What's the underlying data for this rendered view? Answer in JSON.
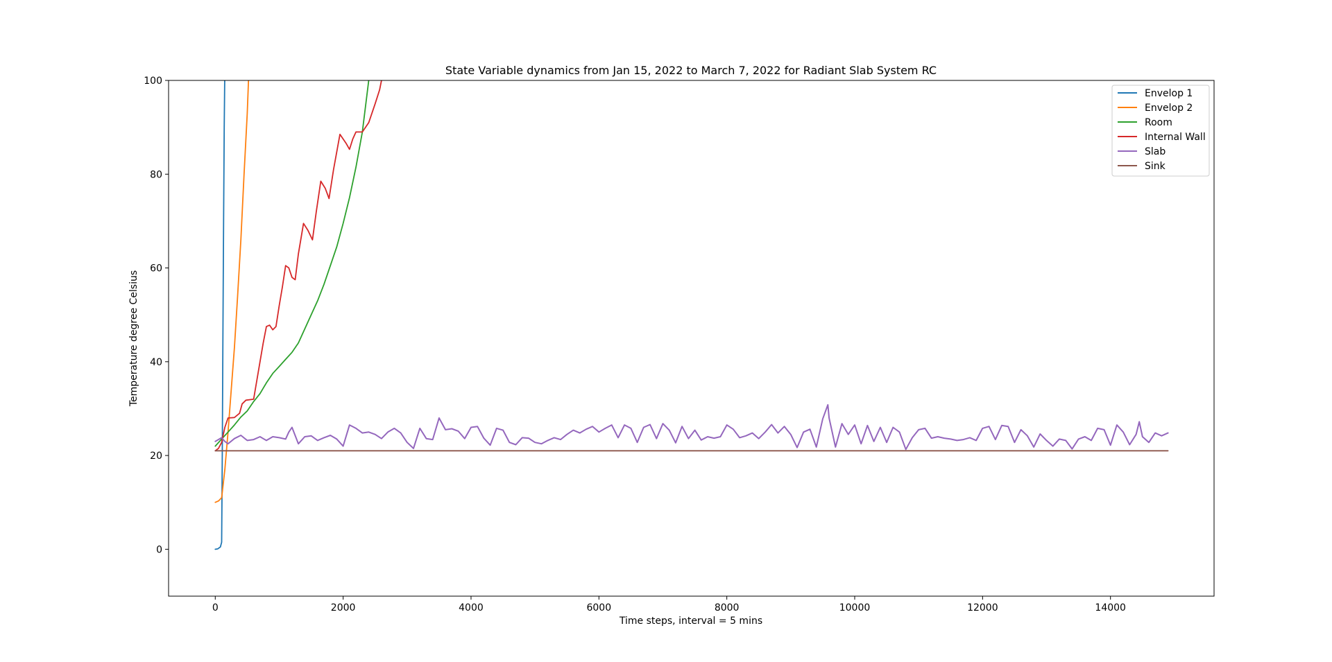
{
  "chart_data": {
    "type": "line",
    "title": "State Variable dynamics from Jan 15, 2022 to March 7, 2022 for Radiant Slab System RC",
    "xlabel": "Time steps, interval = 5 mins",
    "ylabel": "Temperature degree Celsius",
    "xlim": [
      -730,
      15620
    ],
    "ylim": [
      -10,
      100
    ],
    "xticks": [
      0,
      2000,
      4000,
      6000,
      8000,
      10000,
      12000,
      14000
    ],
    "yticks": [
      0,
      20,
      40,
      60,
      80,
      100
    ],
    "grid": false,
    "legend_position": "top-right",
    "series": [
      {
        "name": "Envelop 1",
        "color": "#1f77b4",
        "points": [
          [
            0,
            0
          ],
          [
            40,
            0.1
          ],
          [
            80,
            0.5
          ],
          [
            100,
            1.5
          ],
          [
            110,
            20
          ],
          [
            120,
            45
          ],
          [
            130,
            70
          ],
          [
            140,
            90
          ],
          [
            148,
            100
          ]
        ]
      },
      {
        "name": "Envelop 2",
        "color": "#ff7f0e",
        "points": [
          [
            0,
            10
          ],
          [
            50,
            10.3
          ],
          [
            100,
            11
          ],
          [
            150,
            17
          ],
          [
            200,
            25
          ],
          [
            250,
            34
          ],
          [
            300,
            43
          ],
          [
            350,
            54
          ],
          [
            400,
            66
          ],
          [
            450,
            80
          ],
          [
            500,
            93
          ],
          [
            520,
            100
          ]
        ]
      },
      {
        "name": "Room",
        "color": "#2ca02c",
        "points": [
          [
            0,
            22
          ],
          [
            100,
            23.5
          ],
          [
            200,
            25
          ],
          [
            300,
            26.5
          ],
          [
            400,
            28.2
          ],
          [
            500,
            29.5
          ],
          [
            600,
            31.5
          ],
          [
            700,
            33.2
          ],
          [
            800,
            35.5
          ],
          [
            900,
            37.5
          ],
          [
            1000,
            39
          ],
          [
            1100,
            40.5
          ],
          [
            1200,
            42
          ],
          [
            1300,
            44
          ],
          [
            1400,
            47
          ],
          [
            1500,
            50
          ],
          [
            1600,
            53
          ],
          [
            1700,
            56.5
          ],
          [
            1800,
            60.5
          ],
          [
            1900,
            64.5
          ],
          [
            2000,
            69.5
          ],
          [
            2100,
            75
          ],
          [
            2200,
            81.5
          ],
          [
            2300,
            89
          ],
          [
            2400,
            100
          ]
        ]
      },
      {
        "name": "Internal Wall",
        "color": "#d62728",
        "points": [
          [
            0,
            21
          ],
          [
            50,
            21.5
          ],
          [
            100,
            22.8
          ],
          [
            150,
            26
          ],
          [
            200,
            28
          ],
          [
            300,
            28.1
          ],
          [
            380,
            29
          ],
          [
            420,
            31
          ],
          [
            480,
            31.8
          ],
          [
            600,
            32
          ],
          [
            650,
            36
          ],
          [
            700,
            40
          ],
          [
            750,
            44
          ],
          [
            800,
            47.5
          ],
          [
            850,
            47.8
          ],
          [
            900,
            46.8
          ],
          [
            950,
            47.5
          ],
          [
            1000,
            52
          ],
          [
            1050,
            56
          ],
          [
            1100,
            60.5
          ],
          [
            1150,
            60
          ],
          [
            1200,
            58
          ],
          [
            1250,
            57.5
          ],
          [
            1300,
            63
          ],
          [
            1380,
            69.5
          ],
          [
            1450,
            68
          ],
          [
            1520,
            66
          ],
          [
            1580,
            72
          ],
          [
            1650,
            78.5
          ],
          [
            1720,
            77
          ],
          [
            1780,
            74.8
          ],
          [
            1850,
            81
          ],
          [
            1950,
            88.5
          ],
          [
            2050,
            86.5
          ],
          [
            2100,
            85.3
          ],
          [
            2150,
            87.5
          ],
          [
            2200,
            89
          ],
          [
            2300,
            89
          ],
          [
            2400,
            91
          ],
          [
            2500,
            95
          ],
          [
            2570,
            98
          ],
          [
            2600,
            100
          ]
        ]
      },
      {
        "name": "Slab",
        "color": "#9467bd",
        "points": [
          [
            0,
            23
          ],
          [
            100,
            23.8
          ],
          [
            150,
            23
          ],
          [
            200,
            22.5
          ],
          [
            300,
            23.6
          ],
          [
            400,
            24.3
          ],
          [
            500,
            23.2
          ],
          [
            600,
            23.4
          ],
          [
            700,
            24
          ],
          [
            800,
            23.2
          ],
          [
            900,
            24
          ],
          [
            1000,
            23.8
          ],
          [
            1100,
            23.5
          ],
          [
            1150,
            25
          ],
          [
            1200,
            26
          ],
          [
            1300,
            22.5
          ],
          [
            1400,
            24
          ],
          [
            1500,
            24.2
          ],
          [
            1600,
            23.2
          ],
          [
            1700,
            23.8
          ],
          [
            1800,
            24.3
          ],
          [
            1900,
            23.5
          ],
          [
            2000,
            22
          ],
          [
            2100,
            26.5
          ],
          [
            2200,
            25.8
          ],
          [
            2300,
            24.8
          ],
          [
            2400,
            25
          ],
          [
            2500,
            24.5
          ],
          [
            2600,
            23.6
          ],
          [
            2700,
            25
          ],
          [
            2800,
            25.8
          ],
          [
            2900,
            24.8
          ],
          [
            3000,
            22.8
          ],
          [
            3100,
            21.5
          ],
          [
            3200,
            25.8
          ],
          [
            3300,
            23.6
          ],
          [
            3400,
            23.4
          ],
          [
            3500,
            28
          ],
          [
            3600,
            25.5
          ],
          [
            3700,
            25.7
          ],
          [
            3800,
            25.2
          ],
          [
            3900,
            23.6
          ],
          [
            4000,
            26
          ],
          [
            4100,
            26.2
          ],
          [
            4200,
            23.7
          ],
          [
            4300,
            22.2
          ],
          [
            4400,
            25.8
          ],
          [
            4500,
            25.4
          ],
          [
            4600,
            22.8
          ],
          [
            4700,
            22.3
          ],
          [
            4800,
            23.8
          ],
          [
            4900,
            23.7
          ],
          [
            5000,
            22.8
          ],
          [
            5100,
            22.5
          ],
          [
            5200,
            23.2
          ],
          [
            5300,
            23.8
          ],
          [
            5400,
            23.4
          ],
          [
            5500,
            24.5
          ],
          [
            5600,
            25.4
          ],
          [
            5700,
            24.8
          ],
          [
            5800,
            25.6
          ],
          [
            5900,
            26.2
          ],
          [
            6000,
            25
          ],
          [
            6100,
            25.8
          ],
          [
            6200,
            26.5
          ],
          [
            6300,
            23.8
          ],
          [
            6400,
            26.5
          ],
          [
            6500,
            25.8
          ],
          [
            6600,
            22.8
          ],
          [
            6700,
            26
          ],
          [
            6800,
            26.6
          ],
          [
            6900,
            23.6
          ],
          [
            7000,
            26.8
          ],
          [
            7100,
            25.4
          ],
          [
            7200,
            22.7
          ],
          [
            7300,
            26.2
          ],
          [
            7400,
            23.6
          ],
          [
            7500,
            25.4
          ],
          [
            7600,
            23.3
          ],
          [
            7700,
            24
          ],
          [
            7800,
            23.7
          ],
          [
            7900,
            24
          ],
          [
            8000,
            26.5
          ],
          [
            8100,
            25.6
          ],
          [
            8200,
            23.8
          ],
          [
            8300,
            24.2
          ],
          [
            8400,
            24.8
          ],
          [
            8500,
            23.6
          ],
          [
            8600,
            25
          ],
          [
            8700,
            26.6
          ],
          [
            8800,
            24.8
          ],
          [
            8900,
            26.2
          ],
          [
            9000,
            24.5
          ],
          [
            9100,
            21.7
          ],
          [
            9200,
            25
          ],
          [
            9300,
            25.6
          ],
          [
            9400,
            21.8
          ],
          [
            9500,
            27.8
          ],
          [
            9580,
            30.8
          ],
          [
            9600,
            28
          ],
          [
            9700,
            21.8
          ],
          [
            9800,
            26.8
          ],
          [
            9900,
            24.5
          ],
          [
            10000,
            26.5
          ],
          [
            10100,
            22.5
          ],
          [
            10200,
            26.4
          ],
          [
            10300,
            23
          ],
          [
            10400,
            26
          ],
          [
            10500,
            22.8
          ],
          [
            10600,
            26
          ],
          [
            10700,
            25
          ],
          [
            10800,
            21.3
          ],
          [
            10900,
            23.8
          ],
          [
            11000,
            25.5
          ],
          [
            11100,
            25.8
          ],
          [
            11200,
            23.7
          ],
          [
            11300,
            24
          ],
          [
            11400,
            23.7
          ],
          [
            11500,
            23.5
          ],
          [
            11600,
            23.2
          ],
          [
            11700,
            23.4
          ],
          [
            11800,
            23.8
          ],
          [
            11900,
            23.2
          ],
          [
            12000,
            25.8
          ],
          [
            12100,
            26.2
          ],
          [
            12200,
            23.4
          ],
          [
            12300,
            26.4
          ],
          [
            12400,
            26.2
          ],
          [
            12500,
            22.8
          ],
          [
            12600,
            25.5
          ],
          [
            12700,
            24.2
          ],
          [
            12800,
            21.8
          ],
          [
            12900,
            24.6
          ],
          [
            13000,
            23.2
          ],
          [
            13100,
            22
          ],
          [
            13200,
            23.5
          ],
          [
            13300,
            23.2
          ],
          [
            13400,
            21.4
          ],
          [
            13500,
            23.5
          ],
          [
            13600,
            24
          ],
          [
            13700,
            23.2
          ],
          [
            13800,
            25.8
          ],
          [
            13900,
            25.5
          ],
          [
            14000,
            22.2
          ],
          [
            14100,
            26.5
          ],
          [
            14200,
            25
          ],
          [
            14300,
            22.3
          ],
          [
            14400,
            24.5
          ],
          [
            14450,
            27.2
          ],
          [
            14500,
            24
          ],
          [
            14600,
            22.8
          ],
          [
            14700,
            24.8
          ],
          [
            14800,
            24.2
          ],
          [
            14900,
            24.8
          ]
        ]
      },
      {
        "name": "Sink",
        "color": "#8c564b",
        "points": [
          [
            0,
            21
          ],
          [
            14900,
            21
          ]
        ]
      }
    ]
  }
}
